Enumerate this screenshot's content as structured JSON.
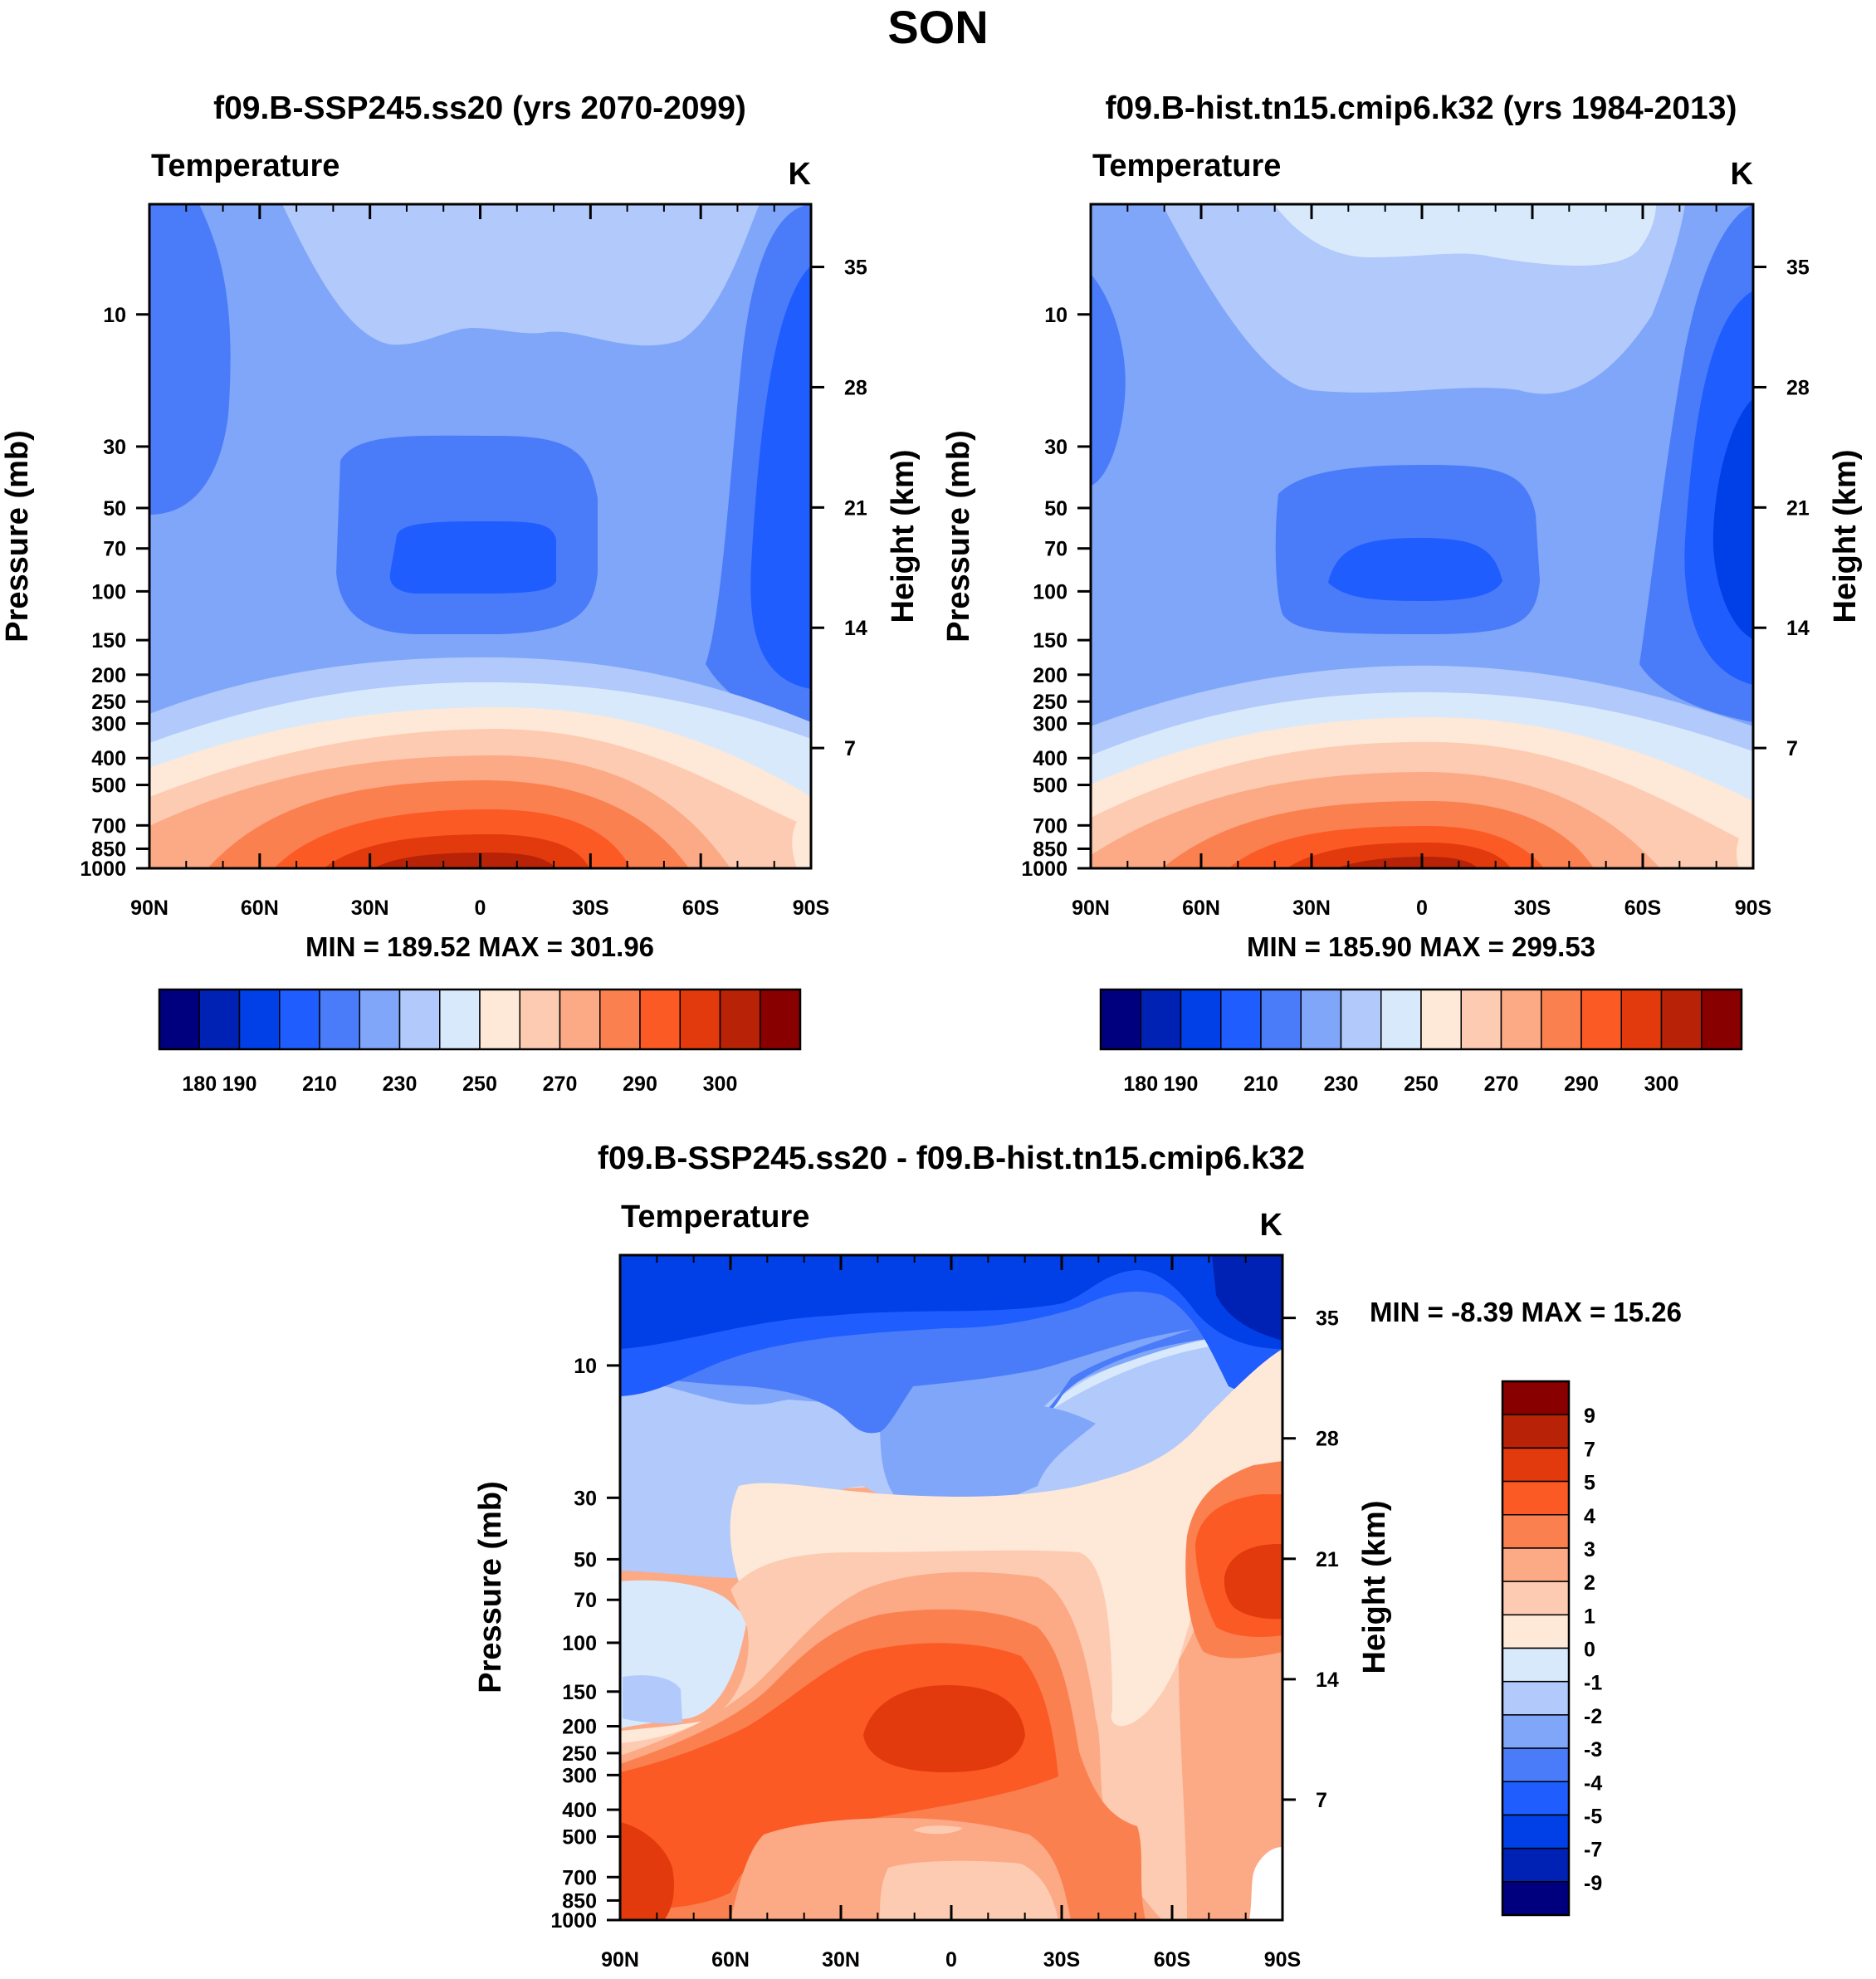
{
  "figure": {
    "season": "SON"
  },
  "colors": {
    "abs_palette": [
      "#00007f",
      "#0022b4",
      "#0040e6",
      "#1f5dff",
      "#4a7cfa",
      "#80a6fa",
      "#b1c9fb",
      "#d9e9fc",
      "#fee8d7",
      "#fdcbb1",
      "#fca986",
      "#fb8050",
      "#fc5a25",
      "#e23a0d",
      "#b82207",
      "#880000"
    ],
    "diff_palette": [
      "#00007f",
      "#0022b4",
      "#0040e6",
      "#1f5dff",
      "#4a7cfa",
      "#80a6fa",
      "#b1c9fb",
      "#d9e9fc",
      "#fee8d7",
      "#fdcbb1",
      "#fca986",
      "#fb8050",
      "#fc5a25",
      "#e23a0d",
      "#b82207",
      "#880000"
    ]
  },
  "chart_data": [
    {
      "type": "contour",
      "panel": "ssp",
      "title": "f09.B-SSP245.ss20 (yrs 2070-2099)",
      "variable": "Temperature",
      "units": "K",
      "xlabel": "",
      "ylabel": "Pressure (mb)",
      "ylabel_right": "Height (km)",
      "x_ticks": [
        "90N",
        "60N",
        "30N",
        "0",
        "30S",
        "60S",
        "90S"
      ],
      "x_tick_values": [
        90,
        60,
        30,
        0,
        -30,
        -60,
        -90
      ],
      "y_ticks": [
        "10",
        "30",
        "50",
        "70",
        "100",
        "150",
        "200",
        "250",
        "300",
        "400",
        "500",
        "700",
        "850",
        "1000"
      ],
      "y_tick_values": [
        10,
        30,
        50,
        70,
        100,
        150,
        200,
        250,
        300,
        400,
        500,
        700,
        850,
        1000
      ],
      "y_range_mb": [
        4,
        1000
      ],
      "right_ticks": [
        "35",
        "28",
        "21",
        "14",
        "7"
      ],
      "right_tick_values_km": [
        35,
        28,
        21,
        14,
        7
      ],
      "levels": [
        180,
        190,
        200,
        210,
        220,
        230,
        240,
        250,
        260,
        270,
        280,
        290,
        295,
        300,
        305
      ],
      "colorbar_labels": [
        "180",
        "190",
        "210",
        "230",
        "250",
        "270",
        "290",
        "300"
      ],
      "stats_label": "MIN = 189.52  MAX = 301.96",
      "min": 189.52,
      "max": 301.96
    },
    {
      "type": "contour",
      "panel": "hist",
      "title": "f09.B-hist.tn15.cmip6.k32 (yrs 1984-2013)",
      "variable": "Temperature",
      "units": "K",
      "xlabel": "",
      "ylabel": "Pressure (mb)",
      "ylabel_right": "Height (km)",
      "x_ticks": [
        "90N",
        "60N",
        "30N",
        "0",
        "30S",
        "60S",
        "90S"
      ],
      "x_tick_values": [
        90,
        60,
        30,
        0,
        -30,
        -60,
        -90
      ],
      "y_ticks": [
        "10",
        "30",
        "50",
        "70",
        "100",
        "150",
        "200",
        "250",
        "300",
        "400",
        "500",
        "700",
        "850",
        "1000"
      ],
      "y_tick_values": [
        10,
        30,
        50,
        70,
        100,
        150,
        200,
        250,
        300,
        400,
        500,
        700,
        850,
        1000
      ],
      "y_range_mb": [
        4,
        1000
      ],
      "right_ticks": [
        "35",
        "28",
        "21",
        "14",
        "7"
      ],
      "right_tick_values_km": [
        35,
        28,
        21,
        14,
        7
      ],
      "levels": [
        180,
        190,
        200,
        210,
        220,
        230,
        240,
        250,
        260,
        270,
        280,
        290,
        295,
        300,
        305
      ],
      "colorbar_labels": [
        "180",
        "190",
        "210",
        "230",
        "250",
        "270",
        "290",
        "300"
      ],
      "stats_label": "MIN = 185.90  MAX = 299.53",
      "min": 185.9,
      "max": 299.53
    },
    {
      "type": "contour",
      "panel": "diff",
      "title": "f09.B-SSP245.ss20 - f09.B-hist.tn15.cmip6.k32",
      "variable": "Temperature",
      "units": "K",
      "xlabel": "",
      "ylabel": "Pressure (mb)",
      "ylabel_right": "Height (km)",
      "x_ticks": [
        "90N",
        "60N",
        "30N",
        "0",
        "30S",
        "60S",
        "90S"
      ],
      "x_tick_values": [
        90,
        60,
        30,
        0,
        -30,
        -60,
        -90
      ],
      "y_ticks": [
        "10",
        "30",
        "50",
        "70",
        "100",
        "150",
        "200",
        "250",
        "300",
        "400",
        "500",
        "700",
        "850",
        "1000"
      ],
      "y_tick_values": [
        10,
        30,
        50,
        70,
        100,
        150,
        200,
        250,
        300,
        400,
        500,
        700,
        850,
        1000
      ],
      "y_range_mb": [
        4,
        1000
      ],
      "right_ticks": [
        "35",
        "28",
        "21",
        "14",
        "7"
      ],
      "right_tick_values_km": [
        35,
        28,
        21,
        14,
        7
      ],
      "levels": [
        -9,
        -7,
        -5,
        -4,
        -3,
        -2,
        -1,
        0,
        1,
        2,
        3,
        4,
        5,
        7,
        9
      ],
      "colorbar_labels": [
        "9",
        "7",
        "5",
        "4",
        "3",
        "2",
        "1",
        "0",
        "-1",
        "-2",
        "-3",
        "-4",
        "-5",
        "-7",
        "-9"
      ],
      "stats_label": "MIN =  -8.39  MAX =  15.26",
      "min": -8.39,
      "max": 15.26
    }
  ]
}
